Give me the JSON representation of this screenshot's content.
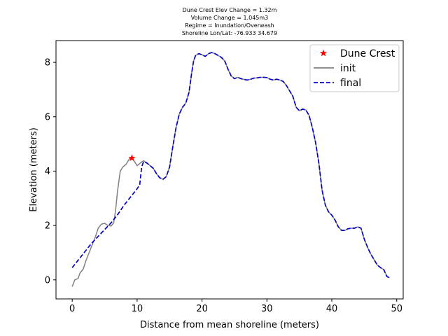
{
  "chart_data": {
    "type": "line",
    "title_lines": [
      "Dune Crest Elev Change = 1.32m",
      "Volume Change = 1.045m3",
      "Regime = Inundation/Overwash",
      "Shoreline Lon/Lat: -76.933 34.679"
    ],
    "xlabel": "Distance from mean shoreline (meters)",
    "ylabel": "Elevation (meters)",
    "xlim": [
      -2.5,
      51
    ],
    "ylim": [
      -0.7,
      8.8
    ],
    "xticks": [
      0,
      10,
      20,
      30,
      40,
      50
    ],
    "yticks": [
      0,
      2,
      4,
      6,
      8
    ],
    "grid": false,
    "legend_position": "top-right",
    "series": [
      {
        "name": "init",
        "color": "#808080",
        "style": "solid",
        "points": [
          [
            0,
            -0.25
          ],
          [
            0.4,
            0.0
          ],
          [
            0.9,
            0.05
          ],
          [
            1.2,
            0.25
          ],
          [
            1.7,
            0.4
          ],
          [
            2.1,
            0.7
          ],
          [
            2.6,
            1.0
          ],
          [
            3.1,
            1.3
          ],
          [
            3.6,
            1.6
          ],
          [
            4.0,
            1.9
          ],
          [
            4.5,
            2.05
          ],
          [
            5.0,
            2.08
          ],
          [
            5.5,
            2.0
          ],
          [
            6.0,
            1.98
          ],
          [
            6.4,
            2.1
          ],
          [
            6.7,
            2.6
          ],
          [
            7.0,
            3.3
          ],
          [
            7.4,
            4.0
          ],
          [
            7.8,
            4.15
          ],
          [
            8.3,
            4.25
          ],
          [
            8.8,
            4.45
          ],
          [
            9.2,
            4.48
          ],
          [
            9.6,
            4.35
          ],
          [
            10.0,
            4.2
          ],
          [
            10.5,
            4.3
          ],
          [
            11.0,
            4.38
          ],
          [
            11.5,
            4.3
          ],
          [
            12.0,
            4.2
          ],
          [
            12.5,
            4.1
          ],
          [
            13.0,
            3.9
          ],
          [
            13.5,
            3.75
          ],
          [
            14.0,
            3.7
          ],
          [
            14.5,
            3.8
          ],
          [
            15.0,
            4.15
          ],
          [
            15.5,
            4.9
          ],
          [
            16.0,
            5.6
          ],
          [
            16.5,
            6.1
          ],
          [
            17.0,
            6.35
          ],
          [
            17.5,
            6.5
          ],
          [
            18.0,
            6.9
          ],
          [
            18.4,
            7.6
          ],
          [
            18.7,
            8.05
          ],
          [
            19.0,
            8.25
          ],
          [
            19.5,
            8.32
          ],
          [
            20.0,
            8.28
          ],
          [
            20.5,
            8.22
          ],
          [
            21.0,
            8.32
          ],
          [
            21.5,
            8.36
          ],
          [
            22.0,
            8.32
          ],
          [
            22.5,
            8.25
          ],
          [
            23.0,
            8.18
          ],
          [
            23.5,
            8.05
          ],
          [
            24.0,
            7.75
          ],
          [
            24.5,
            7.5
          ],
          [
            25.0,
            7.4
          ],
          [
            25.5,
            7.45
          ],
          [
            26.0,
            7.4
          ],
          [
            26.5,
            7.37
          ],
          [
            27.0,
            7.35
          ],
          [
            27.5,
            7.38
          ],
          [
            28.0,
            7.42
          ],
          [
            28.5,
            7.43
          ],
          [
            29.0,
            7.45
          ],
          [
            29.5,
            7.45
          ],
          [
            30.0,
            7.44
          ],
          [
            30.5,
            7.38
          ],
          [
            31.0,
            7.35
          ],
          [
            31.5,
            7.38
          ],
          [
            32.0,
            7.35
          ],
          [
            32.5,
            7.3
          ],
          [
            33.0,
            7.15
          ],
          [
            33.5,
            6.95
          ],
          [
            34.0,
            6.75
          ],
          [
            34.5,
            6.35
          ],
          [
            35.0,
            6.22
          ],
          [
            35.5,
            6.28
          ],
          [
            36.0,
            6.25
          ],
          [
            36.5,
            6.05
          ],
          [
            37.0,
            5.6
          ],
          [
            37.5,
            5.05
          ],
          [
            38.0,
            4.3
          ],
          [
            38.5,
            3.3
          ],
          [
            39.0,
            2.75
          ],
          [
            39.5,
            2.5
          ],
          [
            40.0,
            2.38
          ],
          [
            40.5,
            2.2
          ],
          [
            41.0,
            1.95
          ],
          [
            41.5,
            1.82
          ],
          [
            42.0,
            1.82
          ],
          [
            42.5,
            1.88
          ],
          [
            43.0,
            1.9
          ],
          [
            43.5,
            1.9
          ],
          [
            44.0,
            1.95
          ],
          [
            44.5,
            1.9
          ],
          [
            45.0,
            1.5
          ],
          [
            45.5,
            1.2
          ],
          [
            46.0,
            0.95
          ],
          [
            46.5,
            0.75
          ],
          [
            47.0,
            0.55
          ],
          [
            47.5,
            0.45
          ],
          [
            48.0,
            0.38
          ],
          [
            48.5,
            0.12
          ],
          [
            48.9,
            0.08
          ]
        ]
      },
      {
        "name": "final",
        "color": "#0000CC",
        "style": "dashed",
        "points": [
          [
            0,
            0.45
          ],
          [
            1.0,
            0.75
          ],
          [
            2.0,
            1.05
          ],
          [
            3.0,
            1.35
          ],
          [
            4.0,
            1.6
          ],
          [
            5.0,
            1.85
          ],
          [
            6.0,
            2.1
          ],
          [
            7.0,
            2.4
          ],
          [
            8.0,
            2.75
          ],
          [
            9.0,
            3.05
          ],
          [
            10.0,
            3.35
          ],
          [
            10.4,
            3.5
          ],
          [
            10.7,
            4.15
          ],
          [
            11.0,
            4.35
          ],
          [
            11.5,
            4.3
          ],
          [
            12.0,
            4.2
          ],
          [
            12.5,
            4.1
          ],
          [
            13.0,
            3.9
          ],
          [
            13.5,
            3.75
          ],
          [
            14.0,
            3.7
          ],
          [
            14.5,
            3.8
          ],
          [
            15.0,
            4.15
          ],
          [
            15.5,
            4.9
          ],
          [
            16.0,
            5.6
          ],
          [
            16.5,
            6.1
          ],
          [
            17.0,
            6.35
          ],
          [
            17.5,
            6.5
          ],
          [
            18.0,
            6.9
          ],
          [
            18.4,
            7.6
          ],
          [
            18.7,
            8.05
          ],
          [
            19.0,
            8.25
          ],
          [
            19.5,
            8.32
          ],
          [
            20.0,
            8.28
          ],
          [
            20.5,
            8.22
          ],
          [
            21.0,
            8.32
          ],
          [
            21.5,
            8.36
          ],
          [
            22.0,
            8.32
          ],
          [
            22.5,
            8.25
          ],
          [
            23.0,
            8.18
          ],
          [
            23.5,
            8.05
          ],
          [
            24.0,
            7.75
          ],
          [
            24.5,
            7.5
          ],
          [
            25.0,
            7.4
          ],
          [
            25.5,
            7.45
          ],
          [
            26.0,
            7.4
          ],
          [
            26.5,
            7.37
          ],
          [
            27.0,
            7.35
          ],
          [
            27.5,
            7.38
          ],
          [
            28.0,
            7.42
          ],
          [
            28.5,
            7.43
          ],
          [
            29.0,
            7.45
          ],
          [
            29.5,
            7.45
          ],
          [
            30.0,
            7.44
          ],
          [
            30.5,
            7.38
          ],
          [
            31.0,
            7.35
          ],
          [
            31.5,
            7.38
          ],
          [
            32.0,
            7.35
          ],
          [
            32.5,
            7.3
          ],
          [
            33.0,
            7.15
          ],
          [
            33.5,
            6.95
          ],
          [
            34.0,
            6.75
          ],
          [
            34.5,
            6.35
          ],
          [
            35.0,
            6.22
          ],
          [
            35.5,
            6.28
          ],
          [
            36.0,
            6.25
          ],
          [
            36.5,
            6.05
          ],
          [
            37.0,
            5.6
          ],
          [
            37.5,
            5.05
          ],
          [
            38.0,
            4.3
          ],
          [
            38.5,
            3.3
          ],
          [
            39.0,
            2.75
          ],
          [
            39.5,
            2.5
          ],
          [
            40.0,
            2.38
          ],
          [
            40.5,
            2.2
          ],
          [
            41.0,
            1.95
          ],
          [
            41.5,
            1.82
          ],
          [
            42.0,
            1.82
          ],
          [
            42.5,
            1.88
          ],
          [
            43.0,
            1.9
          ],
          [
            43.5,
            1.9
          ],
          [
            44.0,
            1.95
          ],
          [
            44.5,
            1.9
          ],
          [
            45.0,
            1.5
          ],
          [
            45.5,
            1.2
          ],
          [
            46.0,
            0.95
          ],
          [
            46.5,
            0.75
          ],
          [
            47.0,
            0.55
          ],
          [
            47.5,
            0.45
          ],
          [
            48.0,
            0.38
          ],
          [
            48.5,
            0.12
          ],
          [
            48.9,
            0.08
          ]
        ]
      }
    ],
    "markers": [
      {
        "name": "Dune Crest",
        "color": "#FF0000",
        "symbol": "star",
        "x": 9.2,
        "y": 4.48
      }
    ]
  }
}
